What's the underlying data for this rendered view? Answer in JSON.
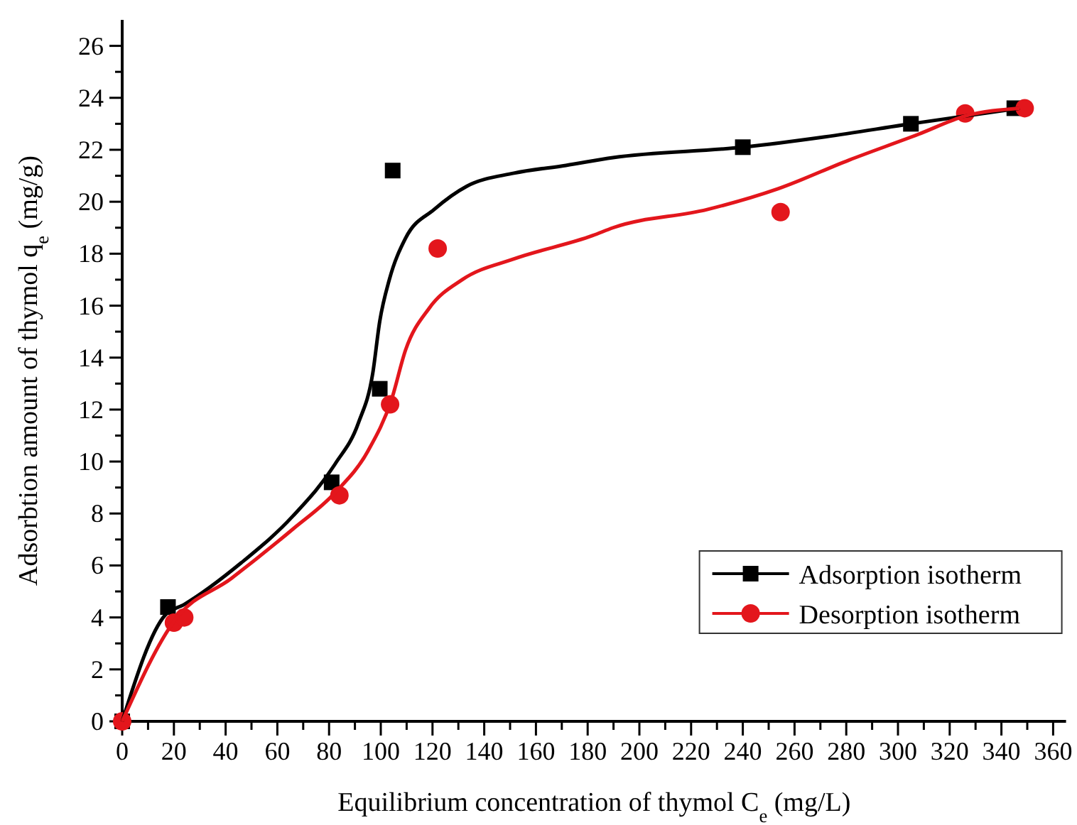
{
  "chart_data": {
    "type": "scatter",
    "xlabel": "Equilibrium concentration of thymol C$_{e}$ (mg/L)",
    "ylabel": "Adsorbtion amount of thymol q$_{e}$ (mg/g)",
    "xlim": [
      0,
      365
    ],
    "ylim": [
      0,
      27
    ],
    "xticks": [
      0,
      {
        "value": 10,
        "label": null
      },
      20,
      {
        "value": 30,
        "label": null
      },
      40,
      {
        "value": 50,
        "label": null
      },
      60,
      {
        "value": 70,
        "label": null
      },
      80,
      {
        "value": 90,
        "label": null
      },
      100,
      {
        "value": 110,
        "label": null
      },
      120,
      {
        "value": 130,
        "label": null
      },
      140,
      {
        "value": 150,
        "label": null
      },
      160,
      {
        "value": 170,
        "label": null
      },
      180,
      {
        "value": 190,
        "label": null
      },
      200,
      {
        "value": 210,
        "label": null
      },
      220,
      {
        "value": 230,
        "label": null
      },
      240,
      {
        "value": 250,
        "label": null
      },
      260,
      {
        "value": 270,
        "label": null
      },
      280,
      {
        "value": 290,
        "label": null
      },
      300,
      {
        "value": 310,
        "label": null
      },
      320,
      {
        "value": 330,
        "label": null
      },
      340,
      {
        "value": 350,
        "label": null
      },
      360
    ],
    "yticks": [
      0,
      {
        "value": 1,
        "label": null
      },
      2,
      {
        "value": 3,
        "label": null
      },
      4,
      {
        "value": 5,
        "label": null
      },
      6,
      {
        "value": 7,
        "label": null
      },
      8,
      {
        "value": 9,
        "label": null
      },
      10,
      {
        "value": 11,
        "label": null
      },
      12,
      {
        "value": 13,
        "label": null
      },
      14,
      {
        "value": 15,
        "label": null
      },
      16,
      {
        "value": 17,
        "label": null
      },
      18,
      {
        "value": 19,
        "label": null
      },
      20,
      {
        "value": 21,
        "label": null
      },
      22,
      {
        "value": 23,
        "label": null
      },
      24,
      {
        "value": 25,
        "label": null
      },
      26
    ],
    "grid": false,
    "legend": "bottom right",
    "series": [
      {
        "name": "Adsorption isotherm",
        "color": "#000000",
        "marker": "square",
        "x": [
          0,
          17.7,
          81,
          99.6,
          104.6,
          240,
          305,
          345
        ],
        "values": [
          0,
          4.4,
          9.2,
          12.8,
          21.2,
          22.1,
          23.0,
          23.6
        ]
      },
      {
        "name": "Desorption isotherm",
        "color": "#e3161c",
        "marker": "circle",
        "x": [
          0,
          20,
          24,
          84,
          103.6,
          122,
          254.6,
          326,
          349
        ],
        "values": [
          0,
          3.8,
          4.0,
          8.7,
          12.2,
          18.2,
          19.6,
          23.4,
          23.6
        ]
      },
      {
        "type": "line",
        "color": "#000000",
        "marker": "none",
        "x": [
          0,
          16.7,
          24,
          46,
          66,
          82.3,
          91.4,
          96.9,
          99.6,
          103.3,
          109.6,
          120.6,
          133.3,
          151.5,
          171.6,
          189.8,
          240,
          271.8,
          305,
          347
        ],
        "values": [
          0,
          4.1,
          4.5,
          6.1,
          7.9,
          9.9,
          11.5,
          13.4,
          15.4,
          17.0,
          18.6,
          19.7,
          20.6,
          21.1,
          21.4,
          21.7,
          22.1,
          22.5,
          23.0,
          23.6
        ]
      },
      {
        "type": "line",
        "color": "#e3161c",
        "marker": "none",
        "x": [
          0,
          20.4,
          42.2,
          66,
          82.3,
          95,
          104.2,
          109.6,
          118.7,
          131.5,
          151.5,
          182,
          189.8,
          226.2,
          253.6,
          281,
          308,
          326,
          347
        ],
        "values": [
          0,
          3.9,
          5.5,
          7.4,
          8.8,
          10.4,
          12.4,
          14.3,
          15.9,
          17.0,
          17.8,
          18.7,
          19.0,
          19.7,
          20.5,
          21.6,
          22.6,
          23.3,
          23.6
        ]
      }
    ]
  }
}
